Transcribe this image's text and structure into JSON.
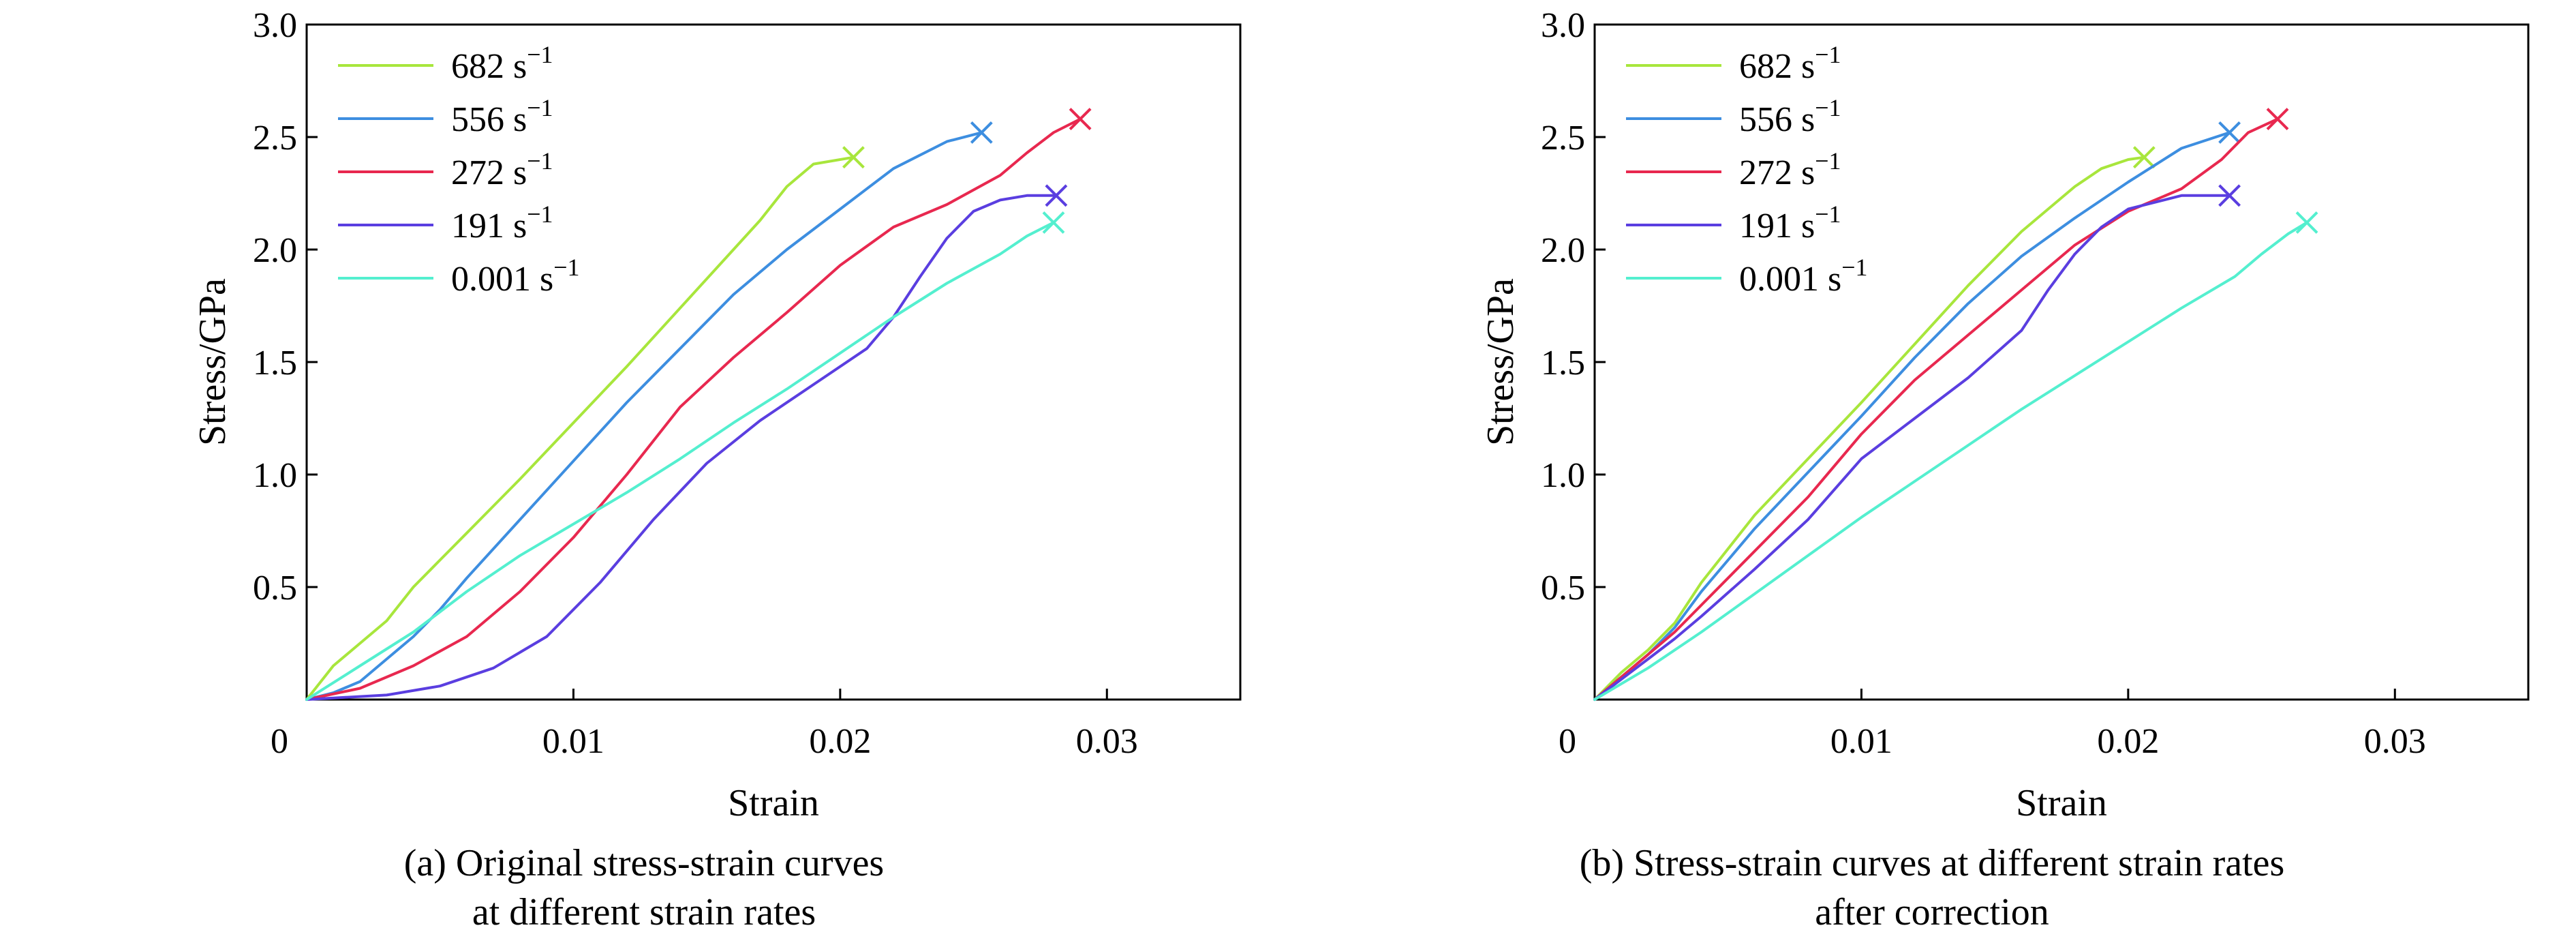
{
  "colors": {
    "682": "#a8e63c",
    "556": "#3d8ee0",
    "272": "#e8284f",
    "191": "#5a3ee0",
    "0.001": "#54efcf"
  },
  "chart_data": [
    {
      "id": "a",
      "type": "line",
      "caption_lines": [
        "(a) Original stress-strain curves",
        "at different strain rates"
      ],
      "xlabel": "Strain",
      "ylabel": "Stress/GPa",
      "xlim": [
        0,
        0.035
      ],
      "ylim": [
        0,
        3.0
      ],
      "xticks": [
        0,
        0.01,
        0.02,
        0.03
      ],
      "xtick_labels": [
        "0",
        "0.01",
        "0.02",
        "0.03"
      ],
      "yticks": [
        0.5,
        1.0,
        1.5,
        2.0,
        2.5,
        3.0
      ],
      "ytick_labels": [
        "0.5",
        "1.0",
        "1.5",
        "2.0",
        "2.5",
        "3.0"
      ],
      "grid": false,
      "legend_position": "top-left",
      "series": [
        {
          "rate": "682",
          "unit": "s",
          "exp": "−1",
          "color_key": "682",
          "x": [
            0,
            0.001,
            0.002,
            0.003,
            0.004,
            0.005,
            0.006,
            0.008,
            0.01,
            0.012,
            0.014,
            0.016,
            0.017,
            0.018,
            0.019,
            0.0205
          ],
          "y": [
            0,
            0.15,
            0.25,
            0.35,
            0.5,
            0.62,
            0.74,
            0.98,
            1.23,
            1.48,
            1.74,
            2.0,
            2.13,
            2.28,
            2.38,
            2.41
          ]
        },
        {
          "rate": "556",
          "unit": "s",
          "exp": "−1",
          "color_key": "556",
          "x": [
            0,
            0.001,
            0.002,
            0.003,
            0.004,
            0.005,
            0.006,
            0.008,
            0.01,
            0.012,
            0.014,
            0.016,
            0.018,
            0.02,
            0.022,
            0.024,
            0.0253
          ],
          "y": [
            0,
            0.03,
            0.08,
            0.18,
            0.28,
            0.4,
            0.54,
            0.8,
            1.06,
            1.32,
            1.56,
            1.8,
            2.0,
            2.18,
            2.36,
            2.48,
            2.52
          ]
        },
        {
          "rate": "272",
          "unit": "s",
          "exp": "−1",
          "color_key": "272",
          "x": [
            0,
            0.002,
            0.004,
            0.006,
            0.008,
            0.01,
            0.012,
            0.014,
            0.016,
            0.018,
            0.02,
            0.022,
            0.024,
            0.026,
            0.027,
            0.028,
            0.029
          ],
          "y": [
            0,
            0.05,
            0.15,
            0.28,
            0.48,
            0.72,
            1.0,
            1.3,
            1.52,
            1.72,
            1.93,
            2.1,
            2.2,
            2.33,
            2.43,
            2.52,
            2.58
          ]
        },
        {
          "rate": "191",
          "unit": "s",
          "exp": "−1",
          "color_key": "191",
          "x": [
            0,
            0.003,
            0.005,
            0.007,
            0.009,
            0.011,
            0.013,
            0.015,
            0.017,
            0.019,
            0.021,
            0.022,
            0.023,
            0.024,
            0.025,
            0.026,
            0.027,
            0.0281
          ],
          "y": [
            0,
            0.02,
            0.06,
            0.14,
            0.28,
            0.52,
            0.8,
            1.05,
            1.24,
            1.4,
            1.56,
            1.7,
            1.88,
            2.05,
            2.17,
            2.22,
            2.24,
            2.24
          ]
        },
        {
          "rate": "0.001",
          "unit": "s",
          "exp": "−1",
          "color_key": "0.001",
          "x": [
            0,
            0.002,
            0.004,
            0.006,
            0.008,
            0.01,
            0.012,
            0.014,
            0.016,
            0.018,
            0.02,
            0.022,
            0.024,
            0.026,
            0.027,
            0.028
          ],
          "y": [
            0,
            0.15,
            0.3,
            0.48,
            0.64,
            0.78,
            0.92,
            1.07,
            1.23,
            1.38,
            1.54,
            1.7,
            1.85,
            1.98,
            2.06,
            2.12
          ]
        }
      ]
    },
    {
      "id": "b",
      "type": "line",
      "caption_lines": [
        "(b) Stress-strain curves at different strain rates",
        "after correction"
      ],
      "xlabel": "Strain",
      "ylabel": "Stress/GPa",
      "xlim": [
        0,
        0.035
      ],
      "ylim": [
        0,
        3.0
      ],
      "xticks": [
        0,
        0.01,
        0.02,
        0.03
      ],
      "xtick_labels": [
        "0",
        "0.01",
        "0.02",
        "0.03"
      ],
      "yticks": [
        0.5,
        1.0,
        1.5,
        2.0,
        2.5,
        3.0
      ],
      "ytick_labels": [
        "0.5",
        "1.0",
        "1.5",
        "2.0",
        "2.5",
        "3.0"
      ],
      "grid": false,
      "legend_position": "top-left",
      "series": [
        {
          "rate": "682",
          "unit": "s",
          "exp": "−1",
          "color_key": "682",
          "x": [
            0,
            0.001,
            0.002,
            0.003,
            0.004,
            0.006,
            0.008,
            0.01,
            0.012,
            0.014,
            0.016,
            0.018,
            0.019,
            0.02,
            0.0206
          ],
          "y": [
            0,
            0.12,
            0.22,
            0.34,
            0.52,
            0.82,
            1.07,
            1.32,
            1.58,
            1.84,
            2.08,
            2.28,
            2.36,
            2.4,
            2.41
          ]
        },
        {
          "rate": "556",
          "unit": "s",
          "exp": "−1",
          "color_key": "556",
          "x": [
            0,
            0.001,
            0.002,
            0.003,
            0.004,
            0.006,
            0.008,
            0.01,
            0.012,
            0.014,
            0.016,
            0.018,
            0.02,
            0.022,
            0.0238
          ],
          "y": [
            0,
            0.1,
            0.2,
            0.32,
            0.48,
            0.76,
            1.01,
            1.26,
            1.52,
            1.76,
            1.97,
            2.14,
            2.3,
            2.45,
            2.52
          ]
        },
        {
          "rate": "272",
          "unit": "s",
          "exp": "−1",
          "color_key": "272",
          "x": [
            0,
            0.001,
            0.002,
            0.003,
            0.004,
            0.006,
            0.008,
            0.01,
            0.012,
            0.014,
            0.016,
            0.018,
            0.02,
            0.022,
            0.0235,
            0.0245,
            0.0256
          ],
          "y": [
            0,
            0.1,
            0.2,
            0.3,
            0.42,
            0.66,
            0.9,
            1.18,
            1.42,
            1.62,
            1.82,
            2.02,
            2.17,
            2.27,
            2.4,
            2.52,
            2.58
          ]
        },
        {
          "rate": "191",
          "unit": "s",
          "exp": "−1",
          "color_key": "191",
          "x": [
            0,
            0.001,
            0.002,
            0.003,
            0.004,
            0.006,
            0.008,
            0.01,
            0.012,
            0.014,
            0.016,
            0.017,
            0.018,
            0.019,
            0.02,
            0.022,
            0.0238
          ],
          "y": [
            0,
            0.09,
            0.18,
            0.27,
            0.37,
            0.58,
            0.8,
            1.07,
            1.25,
            1.43,
            1.64,
            1.82,
            1.98,
            2.1,
            2.18,
            2.24,
            2.24
          ]
        },
        {
          "rate": "0.001",
          "unit": "s",
          "exp": "−1",
          "color_key": "0.001",
          "x": [
            0,
            0.002,
            0.004,
            0.006,
            0.008,
            0.01,
            0.012,
            0.014,
            0.016,
            0.018,
            0.02,
            0.022,
            0.024,
            0.025,
            0.026,
            0.0267
          ],
          "y": [
            0,
            0.14,
            0.3,
            0.47,
            0.64,
            0.81,
            0.97,
            1.13,
            1.29,
            1.44,
            1.59,
            1.74,
            1.88,
            1.98,
            2.07,
            2.12
          ]
        }
      ]
    }
  ]
}
